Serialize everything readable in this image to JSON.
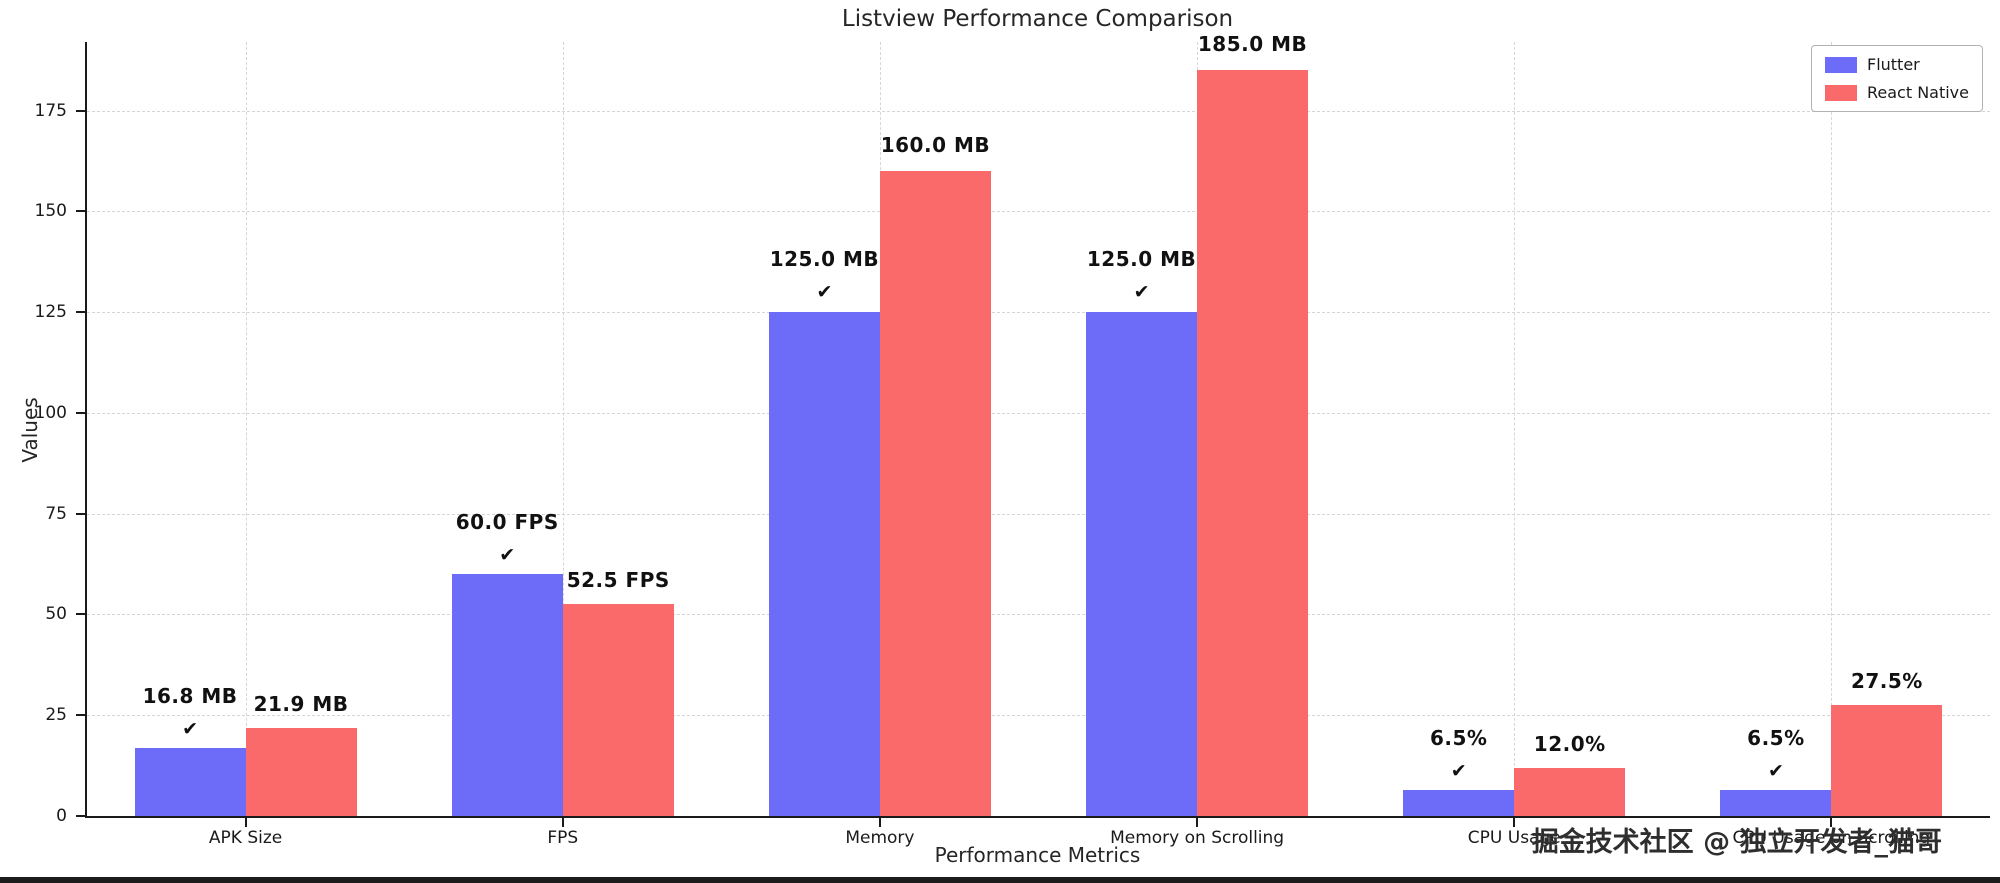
{
  "chart_data": {
    "type": "bar",
    "title": "Listview Performance Comparison",
    "xlabel": "Performance Metrics",
    "ylabel": "Values",
    "ylim": [
      0,
      192
    ],
    "yticks": [
      0,
      25,
      50,
      75,
      100,
      125,
      150,
      175
    ],
    "grid": true,
    "legend_position": "upper right",
    "winner_mark": "✔",
    "categories": [
      "APK Size",
      "FPS",
      "Memory",
      "Memory on Scrolling",
      "CPU Usage",
      "CPU Usage on Scrolling"
    ],
    "series": [
      {
        "name": "Flutter",
        "color": "#6c6cf9",
        "values": [
          16.8,
          60.0,
          125.0,
          125.0,
          6.5,
          6.5
        ],
        "labels": [
          "16.8 MB",
          "60.0 FPS",
          "125.0 MB",
          "125.0 MB",
          "6.5%",
          "6.5%"
        ],
        "winner": [
          true,
          true,
          true,
          true,
          true,
          true
        ]
      },
      {
        "name": "React Native",
        "color": "#fa6a6a",
        "values": [
          21.9,
          52.5,
          160.0,
          185.0,
          12.0,
          27.5
        ],
        "labels": [
          "21.9 MB",
          "52.5 FPS",
          "160.0 MB",
          "185.0 MB",
          "12.0%",
          "27.5%"
        ],
        "winner": [
          false,
          false,
          false,
          false,
          false,
          false
        ]
      }
    ]
  },
  "watermark": "掘金技术社区 @ 独立开发者_猫哥"
}
